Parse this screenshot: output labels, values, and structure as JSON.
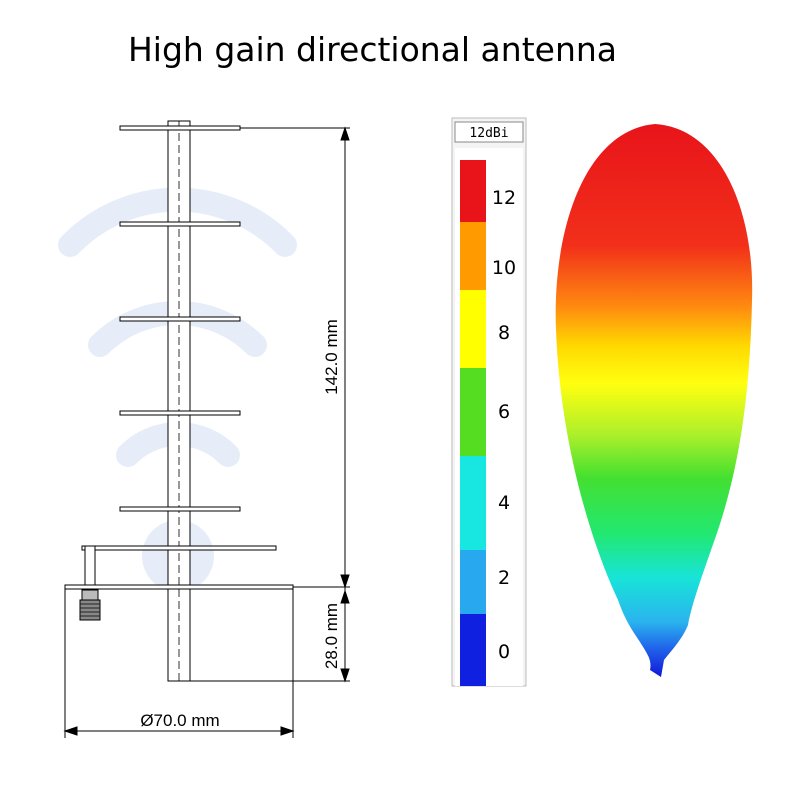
{
  "title": "High gain directional antenna",
  "dimensions": {
    "height_label": "142.0 mm",
    "base_label": "28.0 mm",
    "diameter_label": "Ø70.0 mm"
  },
  "legend": {
    "unit": "12dBi",
    "levels": [
      {
        "label": "12",
        "color": "#e8141a"
      },
      {
        "label": "10",
        "color": "#ff9a00"
      },
      {
        "label": "8",
        "color": "#ffff00"
      },
      {
        "label": "6",
        "color": "#55dd22"
      },
      {
        "label": "4",
        "color": "#18e6e0"
      },
      {
        "label": "2",
        "color": "#28a8ee"
      },
      {
        "label": "0",
        "color": "#1020e0"
      }
    ]
  },
  "colors": {
    "watermark": "#dfe8f7",
    "line": "#000000"
  }
}
